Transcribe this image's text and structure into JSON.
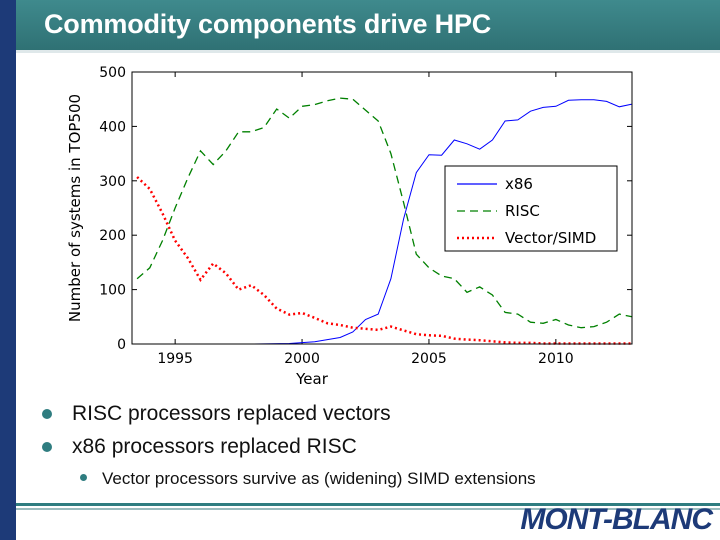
{
  "slide": {
    "title": "Commodity components drive HPC",
    "logo": "MONT-BLANC",
    "bullets": [
      "RISC processors replaced vectors",
      "x86 processors replaced RISC"
    ],
    "sub_bullet": "Vector processors survive as (widening) SIMD extensions"
  },
  "colors": {
    "x86": "#0000ff",
    "RISC": "#008000",
    "Vector/SIMD": "#ff0000",
    "accent": "#2f7d80",
    "navy": "#1d3a78"
  },
  "chart_data": {
    "type": "line",
    "xlabel": "Year",
    "ylabel": "Number of systems in TOP500",
    "xlim": [
      1993.3,
      2013
    ],
    "ylim": [
      0,
      500
    ],
    "x_ticks": [
      "1995",
      "2000",
      "2005",
      "2010"
    ],
    "y_ticks": [
      "0",
      "100",
      "200",
      "300",
      "400",
      "500"
    ],
    "legend_position": "center-right",
    "series": [
      {
        "name": "x86",
        "style": "solid",
        "x": [
          1993.5,
          1996,
          1998,
          1999.5,
          2000.5,
          2001.5,
          2002,
          2002.5,
          2003,
          2003.5,
          2004,
          2004.5,
          2005,
          2005.5,
          2006,
          2006.5,
          2007,
          2007.5,
          2008,
          2008.5,
          2009,
          2009.5,
          2010,
          2010.5,
          2011,
          2011.5,
          2012,
          2012.5,
          2013
        ],
        "y": [
          0,
          0,
          0,
          1,
          4,
          12,
          22,
          45,
          55,
          120,
          230,
          315,
          348,
          347,
          375,
          368,
          358,
          375,
          410,
          412,
          428,
          435,
          437,
          448,
          449,
          449,
          446,
          436,
          441
        ]
      },
      {
        "name": "RISC",
        "style": "dashed",
        "x": [
          1993.5,
          1994,
          1994.5,
          1995,
          1995.5,
          1996,
          1996.5,
          1997,
          1997.5,
          1998,
          1998.5,
          1999,
          1999.5,
          2000,
          2000.5,
          2001,
          2001.5,
          2002,
          2002.5,
          2003,
          2003.5,
          2004,
          2004.5,
          2005,
          2005.5,
          2006,
          2006.5,
          2007,
          2007.5,
          2008,
          2008.5,
          2009,
          2009.5,
          2010,
          2010.5,
          2011,
          2011.5,
          2012,
          2012.5,
          2013
        ],
        "y": [
          120,
          140,
          190,
          250,
          305,
          355,
          330,
          355,
          390,
          390,
          398,
          432,
          415,
          437,
          440,
          447,
          452,
          450,
          430,
          410,
          350,
          260,
          165,
          140,
          125,
          120,
          95,
          105,
          90,
          58,
          55,
          40,
          38,
          45,
          35,
          30,
          32,
          40,
          55,
          50
        ]
      },
      {
        "name": "Vector/SIMD",
        "style": "dotted",
        "x": [
          1993.5,
          1994,
          1994.5,
          1995,
          1995.5,
          1996,
          1996.5,
          1997,
          1997.5,
          1998,
          1998.5,
          1999,
          1999.5,
          2000,
          2000.5,
          2001,
          2001.5,
          2002,
          2002.5,
          2003,
          2003.5,
          2004,
          2004.5,
          2005,
          2005.5,
          2006,
          2006.5,
          2007,
          2007.5,
          2008,
          2008.5,
          2009,
          2009.5,
          2010,
          2010.5,
          2011,
          2011.5,
          2012,
          2012.5,
          2013
        ],
        "y": [
          307,
          285,
          240,
          190,
          158,
          118,
          148,
          130,
          100,
          108,
          90,
          65,
          54,
          57,
          48,
          38,
          35,
          30,
          28,
          26,
          32,
          25,
          18,
          16,
          15,
          10,
          8,
          7,
          5,
          3,
          2,
          2,
          1,
          1,
          1,
          1,
          1,
          1,
          1,
          1
        ]
      }
    ]
  }
}
